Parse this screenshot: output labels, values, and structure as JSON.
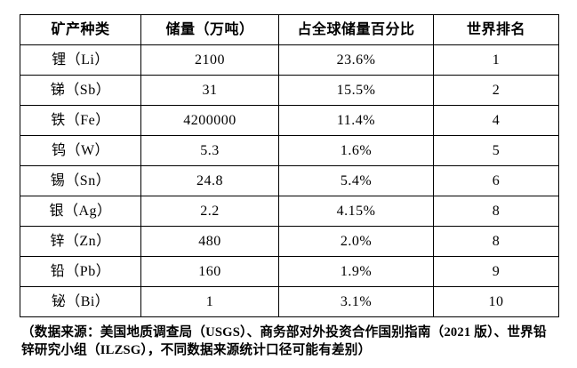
{
  "table": {
    "headers": [
      "矿产种类",
      "储量（万吨）",
      "占全球储量百分比",
      "世界排名"
    ],
    "rows": [
      [
        "锂（Li）",
        "2100",
        "23.6%",
        "1"
      ],
      [
        "锑（Sb）",
        "31",
        "15.5%",
        "2"
      ],
      [
        "铁（Fe）",
        "4200000",
        "11.4%",
        "4"
      ],
      [
        "钨（W）",
        "5.3",
        "1.6%",
        "5"
      ],
      [
        "锡（Sn）",
        "24.8",
        "5.4%",
        "6"
      ],
      [
        "银（Ag）",
        "2.2",
        "4.15%",
        "8"
      ],
      [
        "锌（Zn）",
        "480",
        "2.0%",
        "8"
      ],
      [
        "铅（Pb）",
        "160",
        "1.9%",
        "9"
      ],
      [
        "铋（Bi）",
        "1",
        "3.1%",
        "10"
      ]
    ]
  },
  "footnote": {
    "line1": "（数据来源：美国地质调查局（USGS）、商务部对外投资合作国别指南（2021 版）、世界铅",
    "line2": "锌研究小组（ILZSG），不同数据来源统计口径可能有差别）"
  },
  "colors": {
    "text": "#000000",
    "background": "#ffffff",
    "border": "#000000"
  }
}
